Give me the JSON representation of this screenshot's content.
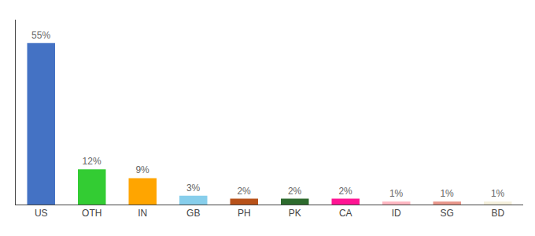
{
  "chart_data": {
    "type": "bar",
    "categories": [
      "US",
      "OTH",
      "IN",
      "GB",
      "PH",
      "PK",
      "CA",
      "ID",
      "SG",
      "BD"
    ],
    "values": [
      55,
      12,
      9,
      3,
      2,
      2,
      2,
      1,
      1,
      1
    ],
    "value_labels": [
      "55%",
      "12%",
      "9%",
      "3%",
      "2%",
      "2%",
      "2%",
      "1%",
      "1%",
      "1%"
    ],
    "colors": [
      "#4472C4",
      "#33CC33",
      "#FFA500",
      "#87CEEB",
      "#B8521A",
      "#2D6A2D",
      "#FF1493",
      "#FFB6C1",
      "#E8968A",
      "#F5F0DC"
    ],
    "ylim": [
      0,
      63
    ],
    "grid": false,
    "data_labels": true,
    "tick_labels": "x"
  }
}
